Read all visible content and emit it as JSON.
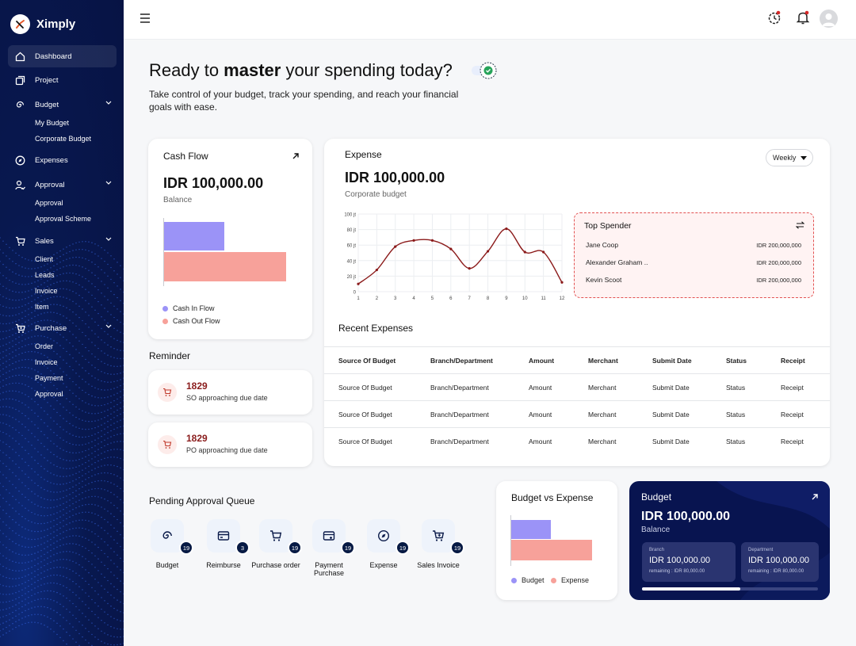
{
  "brand": {
    "name": "Ximply"
  },
  "sidebar": {
    "items": [
      {
        "label": "Dashboard",
        "icon": "home-icon"
      },
      {
        "label": "Project",
        "icon": "copy-icon"
      },
      {
        "label": "Budget",
        "icon": "spiral-icon",
        "children": [
          "My Budget",
          "Corporate Budget"
        ]
      },
      {
        "label": "Expenses",
        "icon": "compass-icon"
      },
      {
        "label": "Approval",
        "icon": "user-check-icon",
        "children": [
          "Approval",
          "Approval Scheme"
        ]
      },
      {
        "label": "Sales",
        "icon": "cart-icon",
        "children": [
          "Client",
          "Leads",
          "Invoice",
          "Item"
        ]
      },
      {
        "label": "Purchase",
        "icon": "cart-plus-icon",
        "children": [
          "Order",
          "Invoice",
          "Payment",
          "Approval"
        ]
      }
    ]
  },
  "hero": {
    "title_pre": "Ready to ",
    "title_bold": "master",
    "title_post": " your spending today?",
    "subtitle": "Take control of your budget, track your spending, and reach your financial goals with ease."
  },
  "cash_flow": {
    "title": "Cash Flow",
    "amount": "IDR 100,000.00",
    "label": "Balance",
    "legend_in": "Cash In Flow",
    "legend_out": "Cash Out Flow",
    "colors": {
      "in": "#9b93f7",
      "out": "#f7a19a"
    }
  },
  "reminder": {
    "title": "Reminder",
    "items": [
      {
        "count": "1829",
        "text": "SO approaching due date"
      },
      {
        "count": "1829",
        "text": "PO approaching due date"
      }
    ]
  },
  "expense": {
    "title": "Expense",
    "amount": "IDR 100,000.00",
    "label": "Corporate budget",
    "period": "Weekly",
    "chart_data": {
      "type": "line",
      "x": [
        1,
        2,
        3,
        4,
        5,
        6,
        7,
        8,
        9,
        10,
        11,
        12
      ],
      "series": [
        {
          "values": [
            10,
            28,
            58,
            66,
            66,
            55,
            30,
            52,
            81,
            51,
            51,
            12
          ]
        }
      ],
      "ytick_labels": [
        "0",
        "20 jt",
        "40 jt",
        "60 jt",
        "80 jt",
        "100 jt"
      ],
      "ylim": [
        0,
        100
      ],
      "grid": true,
      "line_color": "#8b1a1a"
    }
  },
  "top_spender": {
    "title": "Top Spender",
    "rows": [
      {
        "name": "Jane Coop",
        "value": "IDR 200,000,000"
      },
      {
        "name": "Alexander Graham ..",
        "value": "IDR 200,000,000"
      },
      {
        "name": "Kevin Scoot",
        "value": "IDR 200,000,000"
      }
    ]
  },
  "recent": {
    "title": "Recent Expenses",
    "headers": [
      "Source Of Budget",
      "Branch/Department",
      "Amount",
      "Merchant",
      "Submit Date",
      "Status",
      "Receipt"
    ],
    "rows": [
      [
        "Source Of Budget",
        "Branch/Department",
        "Amount",
        "Merchant",
        "Submit Date",
        "Status",
        "Receipt"
      ],
      [
        "Source Of Budget",
        "Branch/Department",
        "Amount",
        "Merchant",
        "Submit Date",
        "Status",
        "Receipt"
      ],
      [
        "Source Of Budget",
        "Branch/Department",
        "Amount",
        "Merchant",
        "Submit Date",
        "Status",
        "Receipt"
      ]
    ]
  },
  "queue": {
    "title": "Pending Approval Queue",
    "items": [
      {
        "label": "Budget",
        "count": "19",
        "icon": "spiral-icon"
      },
      {
        "label": "Reimburse",
        "count": "3",
        "icon": "receipt-icon"
      },
      {
        "label": "Purchase order",
        "count": "19",
        "icon": "cart-icon"
      },
      {
        "label": "Payment Purchase",
        "count": "19",
        "icon": "card-icon"
      },
      {
        "label": "Expense",
        "count": "19",
        "icon": "compass-icon"
      },
      {
        "label": "Sales Invoice",
        "count": "19",
        "icon": "cart-plus-icon"
      }
    ]
  },
  "bve": {
    "title": "Budget vs Expense",
    "legend_budget": "Budget",
    "legend_expense": "Expense",
    "colors": {
      "budget": "#9b93f7",
      "expense": "#f7a19a"
    }
  },
  "budget_card": {
    "title": "Budget",
    "amount": "IDR 100,000.00",
    "label": "Balance",
    "branch": {
      "label": "Branch",
      "amount": "IDR 100,000.00",
      "remaining": "remaining : IDR 80,000.00"
    },
    "department": {
      "label": "Department",
      "amount": "IDR 100,000.00",
      "remaining": "remaining : IDR 80,000.00"
    },
    "progress": 0.56
  }
}
